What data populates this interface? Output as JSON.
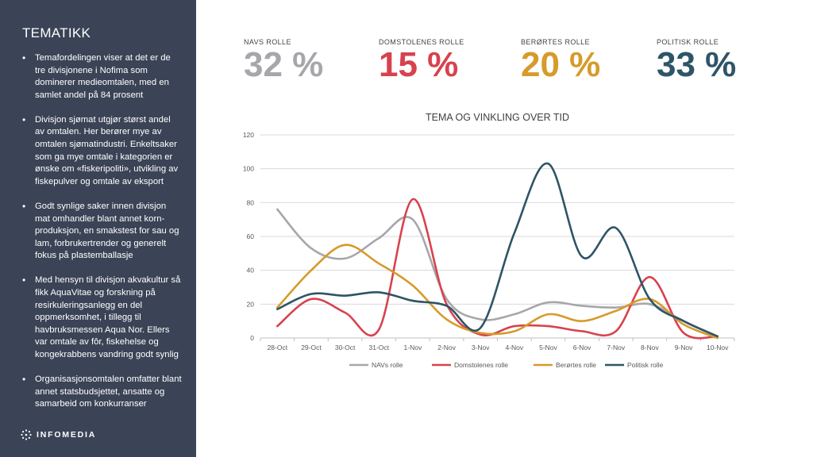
{
  "sidebar": {
    "title": "TEMATIKK",
    "bullets": [
      "Temafordelingen viser at det er de tre divisjonene i Nofima som dominerer medieomtalen, med en samlet andel på 84 prosent",
      "Divisjon sjømat utgjør størst andel av omtalen. Her berører mye av omtalen sjømatindustri. Enkeltsaker som ga mye omtale i kategorien er ønske om «fiskeripoliti», utvikling av fiskepulver og omtale av eksport",
      "Godt synlige saker innen divisjon mat omhandler blant annet korn-produksjon,  en smakstest for sau og lam, forbrukertrender  og generelt fokus på plastemballasje",
      "Med hensyn til divisjon akvakultur så fikk AquaVitae og forskning på resirkuleringsanlegg en del oppmerksomhet,   i tillegg til havbruksmessen Aqua Nor.  Ellers var omtale av fôr, fiskehelse og kongekrabbens vandring godt synlig",
      "Organisasjonsomtalen omfatter blant annet statsbudsjettet, ansatte og samarbeid om konkurranser"
    ],
    "logo_text": "INFOMEDIA"
  },
  "kpis": [
    {
      "label": "NAVS ROLLE",
      "value": "32 %",
      "color": "#a7a6ab"
    },
    {
      "label": "DOMSTOLENES ROLLE",
      "value": "15 %",
      "color": "#d8424e"
    },
    {
      "label": "BERØRTES ROLLE",
      "value": "20 %",
      "color": "#d69b2a"
    },
    {
      "label": "POLITISK ROLLE",
      "value": "33 %",
      "color": "#2e5467"
    }
  ],
  "chart_data": {
    "type": "line",
    "title": "TEMA OG VINKLING OVER TID",
    "categories": [
      "28-Oct",
      "29-Oct",
      "30-Oct",
      "31-Oct",
      "1-Nov",
      "2-Nov",
      "3-Nov",
      "4-Nov",
      "5-Nov",
      "6-Nov",
      "7-Nov",
      "8-Nov",
      "9-Nov",
      "10-Nov"
    ],
    "ylim": [
      0,
      120
    ],
    "yticks": [
      0,
      20,
      40,
      60,
      80,
      100,
      120
    ],
    "grid": true,
    "legend": "bottom",
    "series": [
      {
        "name": "NAVs rolle",
        "color": "#a7a6ab",
        "values": [
          76,
          53,
          47,
          59,
          70,
          23,
          11,
          14,
          21,
          19,
          18,
          20,
          10,
          1
        ]
      },
      {
        "name": "Domstolenes rolle",
        "color": "#d8424e",
        "values": [
          7,
          23,
          15,
          5,
          82,
          20,
          2,
          7,
          7,
          4,
          4,
          36,
          3,
          1
        ]
      },
      {
        "name": "Berørtes rolle",
        "color": "#d69b2a",
        "values": [
          18,
          40,
          55,
          44,
          31,
          11,
          3,
          4,
          14,
          10,
          16,
          23,
          8,
          0
        ]
      },
      {
        "name": "Politisk rolle",
        "color": "#2e5467",
        "values": [
          17,
          26,
          25,
          27,
          22,
          19,
          6,
          62,
          103,
          48,
          65,
          23,
          10,
          1
        ]
      }
    ]
  }
}
